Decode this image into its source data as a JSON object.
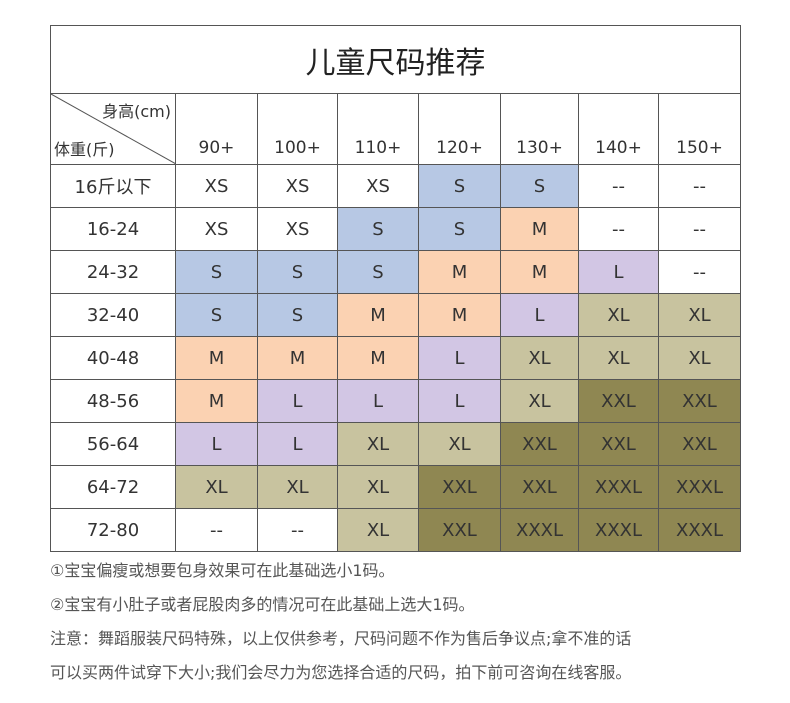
{
  "title": "儿童尺码推荐",
  "table": {
    "corner_top": "身高(cm)",
    "corner_bottom": "体重(斤)",
    "columns": [
      "90+",
      "100+",
      "110+",
      "120+",
      "130+",
      "140+",
      "150+"
    ],
    "rows": [
      {
        "label": "16斤以下",
        "sizes": [
          "XS",
          "XS",
          "XS",
          "S",
          "S",
          "--",
          "--"
        ]
      },
      {
        "label": "16-24",
        "sizes": [
          "XS",
          "XS",
          "S",
          "S",
          "M",
          "--",
          "--"
        ]
      },
      {
        "label": "24-32",
        "sizes": [
          "S",
          "S",
          "S",
          "M",
          "M",
          "L",
          "--"
        ]
      },
      {
        "label": "32-40",
        "sizes": [
          "S",
          "S",
          "M",
          "M",
          "L",
          "XL",
          "XL"
        ]
      },
      {
        "label": "40-48",
        "sizes": [
          "M",
          "M",
          "M",
          "L",
          "XL",
          "XL",
          "XL"
        ]
      },
      {
        "label": "48-56",
        "sizes": [
          "M",
          "L",
          "L",
          "L",
          "XL",
          "XXL",
          "XXL"
        ]
      },
      {
        "label": "56-64",
        "sizes": [
          "L",
          "L",
          "XL",
          "XL",
          "XXL",
          "XXL",
          "XXL"
        ]
      },
      {
        "label": "64-72",
        "sizes": [
          "XL",
          "XL",
          "XL",
          "XXL",
          "XXL",
          "XXXL",
          "XXXL"
        ]
      },
      {
        "label": "72-80",
        "sizes": [
          "--",
          "--",
          "XL",
          "XXL",
          "XXXL",
          "XXXL",
          "XXXL"
        ]
      }
    ],
    "size_colors": {
      "XS": "#ffffff",
      "S": "#b7c8e4",
      "M": "#fbd2b2",
      "L": "#d2c6e4",
      "XL": "#c8c39f",
      "XXL": "#8f8752",
      "XXXL": "#8f8752",
      "--": "#ffffff"
    }
  },
  "notes": [
    "①宝宝偏瘦或想要包身效果可在此基础选小1码。",
    "②宝宝有小肚子或者屁股肉多的情况可在此基础上选大1码。",
    "注意：舞蹈服装尺码特殊，以上仅供参考，尺码问题不作为售后争议点;拿不准的话",
    "可以买两件试穿下大小;我们会尽力为您选择合适的尺码，拍下前可咨询在线客服。"
  ]
}
